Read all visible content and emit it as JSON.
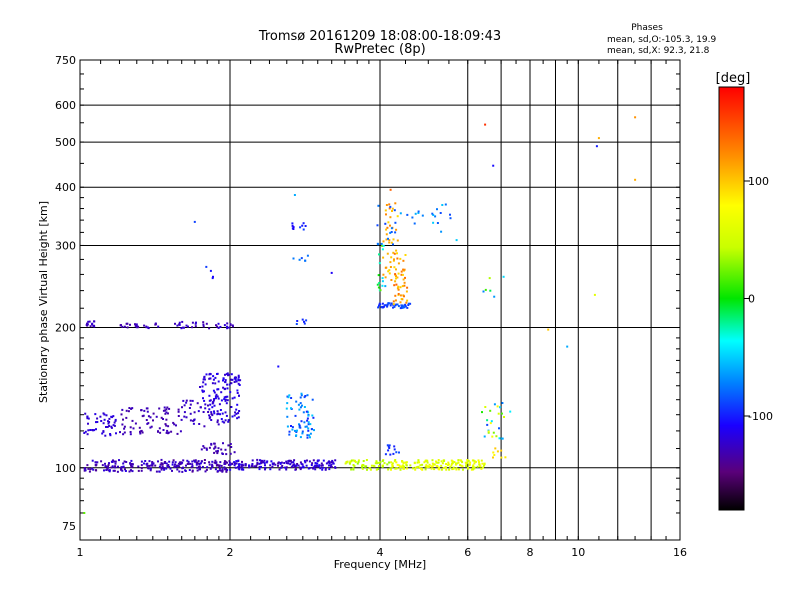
{
  "chart_data": {
    "type": "scatter",
    "title": "Tromsø 20161209 18:08:00-18:09:43",
    "subtitle": "RwPretec (8p)",
    "xlabel": "Frequency [MHz]",
    "ylabel": "Stationary phase Virtual Height [km]",
    "x_scale": "log",
    "y_scale": "log",
    "xlim": [
      1,
      16
    ],
    "ylim": [
      70,
      750
    ],
    "x_ticks": [
      1,
      2,
      4,
      6,
      8,
      10,
      16
    ],
    "y_ticks": [
      75,
      100,
      200,
      300,
      400,
      500,
      600,
      750
    ],
    "grid": true,
    "stats": {
      "heading": "Phases",
      "line_o": "mean, sd,O:-105.3, 19.9",
      "line_x": "mean, sd,X:  92.3, 21.8"
    },
    "colorbar": {
      "label": "[deg]",
      "ticks": [
        100,
        0,
        -100
      ],
      "range": [
        -180,
        180
      ],
      "colormap": "rainbow"
    },
    "series": [
      {
        "clusters": [
          {
            "x": [
              1.02,
              1.6
            ],
            "y": [
              98,
              104
            ],
            "phase": [
              -115,
              -140
            ],
            "n": 150
          },
          {
            "x": [
              1.6,
              2.0
            ],
            "y": [
              98,
              104
            ],
            "phase": [
              -115,
              -140
            ],
            "n": 90
          },
          {
            "x": [
              2.0,
              3.3
            ],
            "y": [
              99,
              104
            ],
            "phase": [
              -110,
              -135
            ],
            "n": 170
          },
          {
            "x": [
              3.4,
              4.2
            ],
            "y": [
              99,
              104
            ],
            "phase": [
              60,
              30
            ],
            "n": 60
          },
          {
            "x": [
              4.2,
              6.5
            ],
            "y": [
              99,
              104
            ],
            "phase": [
              80,
              40
            ],
            "n": 170
          },
          {
            "x": [
              1.02,
              1.2
            ],
            "y": [
              117,
              131
            ],
            "phase": [
              -115,
              -125
            ],
            "n": 50
          },
          {
            "x": [
              1.2,
              1.6
            ],
            "y": [
              118,
              135
            ],
            "phase": [
              -125,
              -135
            ],
            "n": 80
          },
          {
            "x": [
              1.6,
              1.9
            ],
            "y": [
              122,
              140
            ],
            "phase": [
              -120,
              -130
            ],
            "n": 40
          },
          {
            "x": [
              1.73,
              2.1
            ],
            "y": [
              125,
              160
            ],
            "phase": [
              -110,
              -125
            ],
            "n": 130
          },
          {
            "x": [
              1.75,
              2.05
            ],
            "y": [
              107,
              113
            ],
            "phase": [
              -125,
              -135
            ],
            "n": 30
          },
          {
            "x": [
              2.6,
              2.95
            ],
            "y": [
              115,
              145
            ],
            "phase": [
              -50,
              -100
            ],
            "n": 70
          },
          {
            "x": [
              4.1,
              4.4
            ],
            "y": [
              106,
              112
            ],
            "phase": [
              -85,
              -100
            ],
            "n": 12
          },
          {
            "x": [
              1.02,
              1.1
            ],
            "y": [
              201,
              207
            ],
            "phase": [
              -120,
              -135
            ],
            "n": 15
          },
          {
            "x": [
              1.2,
              1.45
            ],
            "y": [
              199,
              204
            ],
            "phase": [
              -120,
              -135
            ],
            "n": 25
          },
          {
            "x": [
              1.55,
              2.05
            ],
            "y": [
              199,
              206
            ],
            "phase": [
              -115,
              -135
            ],
            "n": 35
          },
          {
            "x": [
              2.7,
              2.85
            ],
            "y": [
              202,
              210
            ],
            "phase": [
              -80,
              -100
            ],
            "n": 6
          },
          {
            "x": [
              2.65,
              2.85
            ],
            "y": [
              320,
              335
            ],
            "phase": [
              -90,
              -110
            ],
            "n": 10
          },
          {
            "x": [
              2.65,
              2.9
            ],
            "y": [
              278,
              292
            ],
            "phase": [
              -70,
              -90
            ],
            "n": 6
          },
          {
            "x": [
              1.75,
              1.85
            ],
            "y": [
              240,
              270
            ],
            "phase": [
              -90,
              -110
            ],
            "n": 4
          },
          {
            "x": [
              3.95,
              4.15
            ],
            "y": [
              220,
              225
            ],
            "phase": [
              -90,
              -100
            ],
            "n": 14
          },
          {
            "x": [
              4.1,
              4.6
            ],
            "y": [
              220,
              226
            ],
            "phase": [
              -80,
              -95
            ],
            "n": 30
          },
          {
            "x": [
              4.05,
              4.35
            ],
            "y": [
              250,
              370
            ],
            "phase": [
              130,
              90
            ],
            "n": 45
          },
          {
            "x": [
              4.25,
              4.55
            ],
            "y": [
              220,
              290
            ],
            "phase": [
              140,
              90
            ],
            "n": 45
          },
          {
            "x": [
              3.95,
              4.1
            ],
            "y": [
              240,
              300
            ],
            "phase": [
              -60,
              30
            ],
            "n": 15
          },
          {
            "x": [
              3.95,
              4.3
            ],
            "y": [
              300,
              370
            ],
            "phase": [
              -70,
              -90
            ],
            "n": 15
          },
          {
            "x": [
              4.4,
              5.6
            ],
            "y": [
              320,
              370
            ],
            "phase": [
              -50,
              -90
            ],
            "n": 20
          },
          {
            "x": [
              6.4,
              7.1
            ],
            "y": [
              115,
              140
            ],
            "phase": [
              -90,
              80
            ],
            "n": 25
          },
          {
            "x": [
              6.6,
              7.2
            ],
            "y": [
              105,
              112
            ],
            "phase": [
              80,
              100
            ],
            "n": 8
          },
          {
            "x": [
              6.4,
              7.2
            ],
            "y": [
              230,
              270
            ],
            "phase": [
              -90,
              100
            ],
            "n": 6
          }
        ]
      }
    ],
    "points": [
      {
        "x": 6.5,
        "y": 545,
        "phase": 160
      },
      {
        "x": 6.75,
        "y": 445,
        "phase": -105
      },
      {
        "x": 11.0,
        "y": 510,
        "phase": 110
      },
      {
        "x": 10.9,
        "y": 490,
        "phase": -100
      },
      {
        "x": 13.0,
        "y": 565,
        "phase": 120
      },
      {
        "x": 13.0,
        "y": 415,
        "phase": 110
      },
      {
        "x": 10.8,
        "y": 235,
        "phase": 60
      },
      {
        "x": 8.7,
        "y": 198,
        "phase": 100
      },
      {
        "x": 9.5,
        "y": 182,
        "phase": -60
      },
      {
        "x": 3.2,
        "y": 262,
        "phase": -110
      },
      {
        "x": 1.7,
        "y": 337,
        "phase": -90
      },
      {
        "x": 2.7,
        "y": 385,
        "phase": -60
      },
      {
        "x": 1.02,
        "y": 80,
        "phase": 20
      },
      {
        "x": 2.5,
        "y": 165,
        "phase": -105
      },
      {
        "x": 7.3,
        "y": 132,
        "phase": -40
      },
      {
        "x": 5.7,
        "y": 308,
        "phase": -50
      },
      {
        "x": 4.2,
        "y": 395,
        "phase": 140
      }
    ]
  }
}
